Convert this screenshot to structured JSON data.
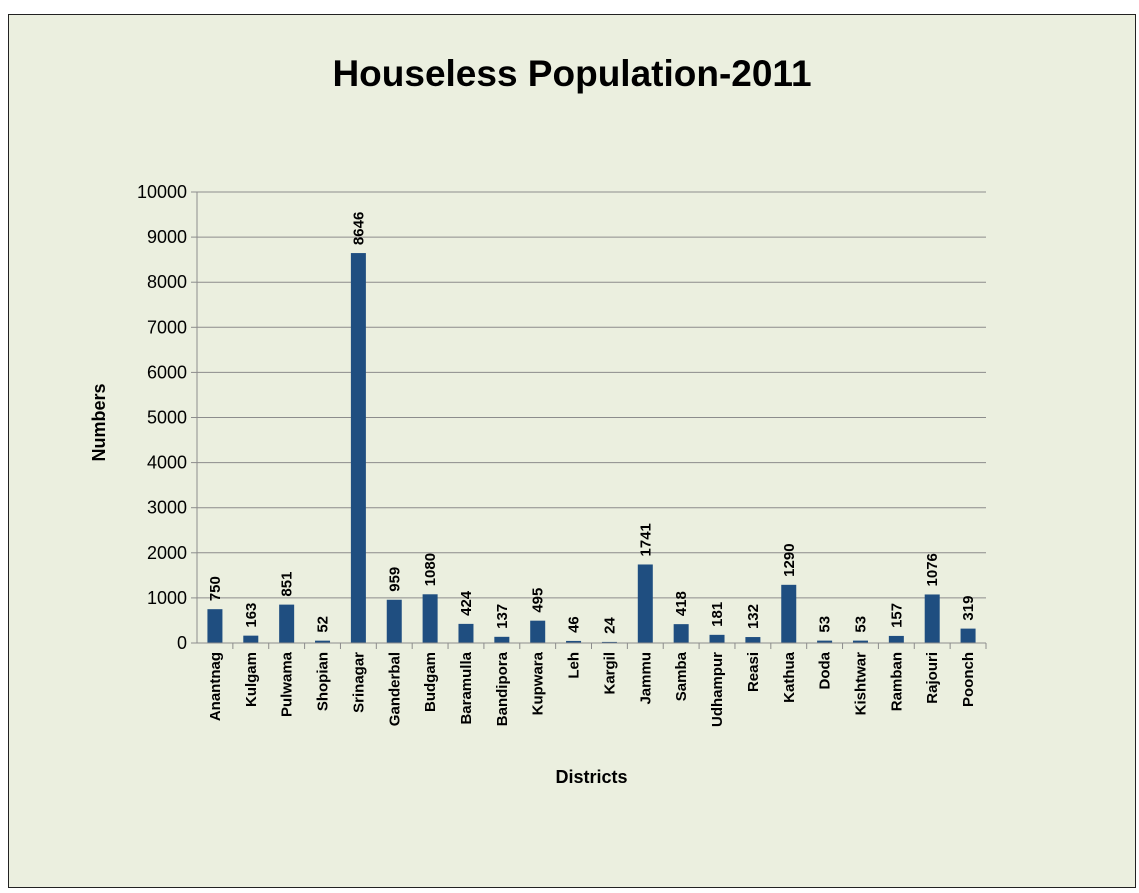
{
  "chart_data": {
    "type": "bar",
    "title": "Houseless Population-2011",
    "xlabel": "Districts",
    "ylabel": "Numbers",
    "ylim": [
      0,
      10000
    ],
    "yticks": [
      0,
      1000,
      2000,
      3000,
      4000,
      5000,
      6000,
      7000,
      8000,
      9000,
      10000
    ],
    "grid": true,
    "legend": "none",
    "bar_color": "#1f4e80",
    "categories": [
      "Anantnag",
      "Kulgam",
      "Pulwama",
      "Shopian",
      "Srinagar",
      "Ganderbal",
      "Budgam",
      "Baramulla",
      "Bandipora",
      "Kupwara",
      "Leh",
      "Kargil",
      "Jammu",
      "Samba",
      "Udhampur",
      "Reasi",
      "Kathua",
      "Doda",
      "Kishtwar",
      "Ramban",
      "Rajouri",
      "Poonch"
    ],
    "values": [
      750,
      163,
      851,
      52,
      8646,
      959,
      1080,
      424,
      137,
      495,
      46,
      24,
      1741,
      418,
      181,
      132,
      1290,
      53,
      53,
      157,
      1076,
      319
    ]
  }
}
